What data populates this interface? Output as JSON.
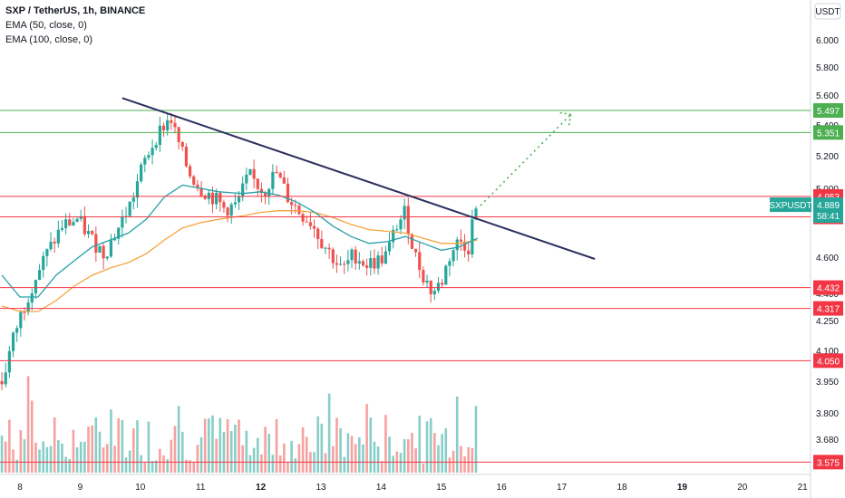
{
  "legend": {
    "symbol_line": "SXP / TetherUS, 1h, BINANCE",
    "ema1": "EMA (50, close, 0)",
    "ema2": "EMA (100, close, 0)"
  },
  "chart_data": {
    "type": "candlestick",
    "symbol": "SXPUSDT",
    "currency": "USDT",
    "countdown": "58:41",
    "current_price": 4.889,
    "y_ticks": [
      6.0,
      5.8,
      5.6,
      5.4,
      5.2,
      5.0,
      4.6,
      4.4,
      4.25,
      4.1,
      3.95,
      3.8,
      3.68
    ],
    "x_ticks": [
      {
        "label": "8",
        "day": 8
      },
      {
        "label": "9",
        "day": 9
      },
      {
        "label": "10",
        "day": 10
      },
      {
        "label": "11",
        "day": 11
      },
      {
        "label": "12",
        "day": 12
      },
      {
        "label": "13",
        "day": 13
      },
      {
        "label": "14",
        "day": 14
      },
      {
        "label": "15",
        "day": 15
      },
      {
        "label": "16",
        "day": 16
      },
      {
        "label": "17",
        "day": 17
      },
      {
        "label": "18",
        "day": 18
      },
      {
        "label": "19",
        "day": 19
      },
      {
        "label": "20",
        "day": 20
      },
      {
        "label": "21",
        "day": 21
      }
    ],
    "bold_x_ticks": [
      "12",
      "19"
    ],
    "horizontal_levels": [
      {
        "price": 5.497,
        "label": "5.497",
        "color": "#4caf50"
      },
      {
        "price": 5.351,
        "label": "5.351",
        "color": "#4caf50"
      },
      {
        "price": 4.953,
        "label": "4.953",
        "color": "#f23645"
      },
      {
        "price": 4.834,
        "label": "4.834",
        "color": "#f23645"
      },
      {
        "price": 4.432,
        "label": "4.432",
        "color": "#f23645"
      },
      {
        "price": 4.317,
        "label": "4.317",
        "color": "#f23645"
      },
      {
        "price": 4.05,
        "label": "4.050",
        "color": "#f23645"
      },
      {
        "price": 3.575,
        "label": "3.575",
        "color": "#f23645"
      }
    ],
    "trendline": {
      "start": {
        "day": 9.7,
        "price": 5.58
      },
      "end": {
        "day": 17.55,
        "price": 4.59
      },
      "color": "#2a2e5e"
    },
    "projection": {
      "start": {
        "day": 15.65,
        "price": 4.9
      },
      "end": {
        "day": 17.15,
        "price": 5.47
      },
      "color": "#4caf50"
    },
    "series": [
      {
        "name": "EMA (50, close, 0)",
        "color": "#26a0a8"
      },
      {
        "name": "EMA (100, close, 0)",
        "color": "#f5a340"
      }
    ],
    "close_path": [
      [
        7.7,
        3.95
      ],
      [
        7.95,
        4.22
      ],
      [
        8.2,
        4.45
      ],
      [
        8.45,
        4.62
      ],
      [
        8.7,
        4.78
      ],
      [
        8.95,
        4.82
      ],
      [
        9.2,
        4.7
      ],
      [
        9.4,
        4.62
      ],
      [
        9.65,
        4.78
      ],
      [
        9.85,
        4.92
      ],
      [
        10.05,
        5.15
      ],
      [
        10.3,
        5.35
      ],
      [
        10.5,
        5.45
      ],
      [
        10.6,
        5.32
      ],
      [
        10.8,
        5.1
      ],
      [
        11.0,
        5.0
      ],
      [
        11.2,
        4.95
      ],
      [
        11.4,
        4.88
      ],
      [
        11.6,
        4.9
      ],
      [
        11.8,
        5.08
      ],
      [
        12.05,
        4.98
      ],
      [
        12.25,
        5.1
      ],
      [
        12.45,
        4.95
      ],
      [
        12.65,
        4.86
      ],
      [
        12.85,
        4.8
      ],
      [
        13.0,
        4.7
      ],
      [
        13.2,
        4.6
      ],
      [
        13.35,
        4.52
      ],
      [
        13.55,
        4.62
      ],
      [
        13.75,
        4.56
      ],
      [
        13.95,
        4.58
      ],
      [
        14.1,
        4.62
      ],
      [
        14.25,
        4.78
      ],
      [
        14.4,
        4.86
      ],
      [
        14.55,
        4.62
      ],
      [
        14.7,
        4.5
      ],
      [
        14.85,
        4.4
      ],
      [
        15.0,
        4.46
      ],
      [
        15.15,
        4.62
      ],
      [
        15.3,
        4.7
      ],
      [
        15.45,
        4.66
      ],
      [
        15.55,
        4.88
      ]
    ],
    "ema50_path": [
      [
        7.7,
        4.5
      ],
      [
        8.0,
        4.38
      ],
      [
        8.3,
        4.38
      ],
      [
        8.6,
        4.5
      ],
      [
        8.9,
        4.58
      ],
      [
        9.2,
        4.66
      ],
      [
        9.5,
        4.7
      ],
      [
        9.8,
        4.74
      ],
      [
        10.1,
        4.82
      ],
      [
        10.4,
        4.95
      ],
      [
        10.7,
        5.02
      ],
      [
        11.0,
        5.0
      ],
      [
        11.3,
        4.98
      ],
      [
        11.7,
        4.97
      ],
      [
        12.0,
        4.98
      ],
      [
        12.3,
        4.96
      ],
      [
        12.6,
        4.92
      ],
      [
        12.9,
        4.86
      ],
      [
        13.2,
        4.78
      ],
      [
        13.5,
        4.72
      ],
      [
        13.8,
        4.68
      ],
      [
        14.1,
        4.69
      ],
      [
        14.4,
        4.72
      ],
      [
        14.7,
        4.68
      ],
      [
        15.0,
        4.64
      ],
      [
        15.3,
        4.66
      ],
      [
        15.6,
        4.71
      ]
    ],
    "ema100_path": [
      [
        7.7,
        4.33
      ],
      [
        8.0,
        4.3
      ],
      [
        8.3,
        4.3
      ],
      [
        8.6,
        4.36
      ],
      [
        8.9,
        4.44
      ],
      [
        9.2,
        4.5
      ],
      [
        9.5,
        4.54
      ],
      [
        9.8,
        4.57
      ],
      [
        10.1,
        4.62
      ],
      [
        10.4,
        4.7
      ],
      [
        10.7,
        4.77
      ],
      [
        11.0,
        4.8
      ],
      [
        11.3,
        4.82
      ],
      [
        11.7,
        4.84
      ],
      [
        12.0,
        4.86
      ],
      [
        12.3,
        4.87
      ],
      [
        12.6,
        4.87
      ],
      [
        12.9,
        4.86
      ],
      [
        13.2,
        4.83
      ],
      [
        13.5,
        4.79
      ],
      [
        13.8,
        4.76
      ],
      [
        14.1,
        4.75
      ],
      [
        14.4,
        4.74
      ],
      [
        14.7,
        4.71
      ],
      [
        15.0,
        4.68
      ],
      [
        15.3,
        4.68
      ],
      [
        15.6,
        4.7
      ]
    ]
  }
}
